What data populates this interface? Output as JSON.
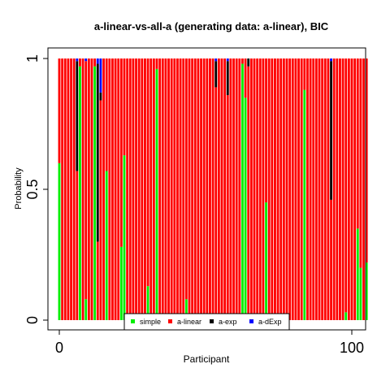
{
  "chart_data": {
    "type": "bar",
    "stacked": true,
    "title": "a-linear-vs-all-a (generating data: a-linear), BIC",
    "xlabel": "Participant",
    "ylabel": "Probability",
    "xlim": [
      1,
      100
    ],
    "ylim": [
      0,
      1
    ],
    "x_ticks": [
      {
        "value": 0,
        "label": "0"
      },
      {
        "value": 100,
        "label": "100"
      }
    ],
    "y_ticks": [
      {
        "value": 0,
        "label": "0"
      },
      {
        "value": 0.5,
        "label": "0.5"
      },
      {
        "value": 1,
        "label": "1"
      }
    ],
    "legend_position": "bottom-center",
    "series": [
      {
        "name": "simple",
        "color": "#00ee00",
        "values": [
          0.6,
          0,
          0,
          0,
          0,
          0,
          0,
          0.97,
          0,
          0.08,
          0,
          0,
          0.97,
          0,
          0,
          0,
          0.57,
          0,
          0,
          0,
          0,
          0.28,
          0.63,
          0,
          0,
          0,
          0,
          0,
          0,
          0,
          0.13,
          0,
          0,
          0.96,
          0,
          0,
          0,
          0,
          0,
          0,
          0,
          0,
          0,
          0.08,
          0,
          0,
          0,
          0,
          0,
          0,
          0,
          0,
          0,
          0,
          0,
          0,
          0,
          0,
          0,
          0,
          0,
          0,
          0.98,
          0.85,
          0,
          0,
          0,
          0,
          0,
          0,
          0.45,
          0,
          0,
          0,
          0,
          0,
          0,
          0,
          0,
          0,
          0,
          0,
          0,
          0.88,
          0,
          0,
          0,
          0,
          0,
          0,
          0,
          0,
          0,
          0,
          0,
          0,
          0,
          0.03,
          0,
          0,
          0,
          0.35,
          0.2,
          0,
          0.22
        ]
      },
      {
        "name": "a-linear",
        "color": "#ff0000",
        "values": [
          0.4,
          1,
          1,
          1,
          1,
          1,
          0.57,
          0.03,
          1,
          0.91,
          1,
          1,
          0.03,
          0.3,
          0.84,
          1,
          0.43,
          1,
          1,
          1,
          1,
          0.72,
          0.37,
          1,
          1,
          1,
          1,
          1,
          1,
          1,
          0.87,
          1,
          1,
          0.04,
          1,
          1,
          1,
          1,
          1,
          1,
          1,
          1,
          1,
          0.92,
          1,
          1,
          1,
          1,
          1,
          1,
          1,
          1,
          1,
          0.89,
          1,
          1,
          1,
          0.86,
          1,
          1,
          1,
          1,
          0.02,
          0.15,
          0.97,
          1,
          1,
          1,
          1,
          1,
          0.55,
          1,
          1,
          1,
          1,
          1,
          1,
          1,
          1,
          1,
          1,
          1,
          1,
          0.12,
          1,
          1,
          1,
          1,
          1,
          1,
          1,
          1,
          0.46,
          1,
          1,
          1,
          1,
          0.97,
          1,
          1,
          1,
          0.65,
          0.8,
          1,
          0.78
        ]
      },
      {
        "name": "a-exp",
        "color": "#000000",
        "values": [
          0,
          0,
          0,
          0,
          0,
          0,
          0.42,
          0,
          0,
          0,
          0,
          0,
          0,
          0.68,
          0.03,
          0,
          0,
          0,
          0,
          0,
          0,
          0,
          0,
          0,
          0,
          0,
          0,
          0,
          0,
          0,
          0,
          0,
          0,
          0,
          0,
          0,
          0,
          0,
          0,
          0,
          0,
          0,
          0,
          0,
          0,
          0,
          0,
          0,
          0,
          0,
          0,
          0,
          0,
          0.1,
          0,
          0,
          0,
          0.13,
          0,
          0,
          0,
          0,
          0,
          0,
          0.03,
          0,
          0,
          0,
          0,
          0,
          0,
          0,
          0,
          0,
          0,
          0,
          0,
          0,
          0,
          0,
          0,
          0,
          0,
          0,
          0,
          0,
          0,
          0,
          0,
          0,
          0,
          0,
          0.53,
          0,
          0,
          0,
          0,
          0,
          0,
          0,
          0,
          0,
          0,
          0,
          0
        ]
      },
      {
        "name": "a-dExp",
        "color": "#0000ff",
        "values": [
          0,
          0,
          0,
          0,
          0,
          0,
          0.01,
          0,
          0,
          0.01,
          0,
          0,
          0,
          0.02,
          0.13,
          0,
          0,
          0,
          0,
          0,
          0,
          0,
          0,
          0,
          0,
          0,
          0,
          0,
          0,
          0,
          0,
          0,
          0,
          0,
          0,
          0,
          0,
          0,
          0,
          0,
          0,
          0,
          0,
          0,
          0,
          0,
          0,
          0,
          0,
          0,
          0,
          0,
          0,
          0.01,
          0,
          0,
          0,
          0.01,
          0,
          0,
          0,
          0,
          0,
          0,
          0,
          0,
          0,
          0,
          0,
          0,
          0,
          0,
          0,
          0,
          0,
          0,
          0,
          0,
          0,
          0,
          0,
          0,
          0,
          0,
          0,
          0,
          0,
          0,
          0,
          0,
          0,
          0,
          0.01,
          0,
          0,
          0,
          0,
          0,
          0,
          0,
          0,
          0,
          0,
          0,
          0
        ]
      }
    ]
  }
}
